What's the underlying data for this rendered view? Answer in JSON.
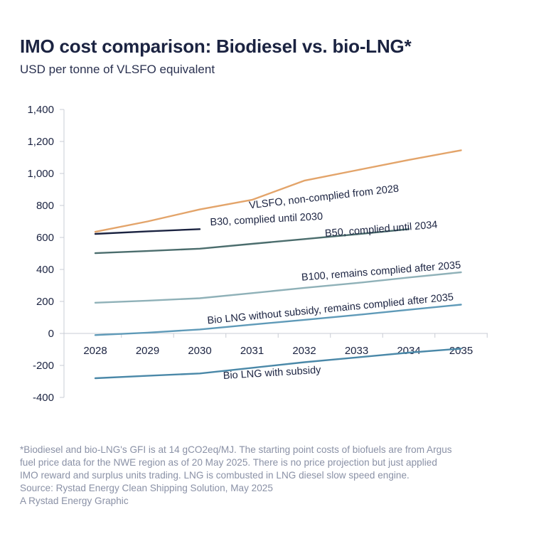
{
  "chart_data": {
    "type": "line",
    "title": "IMO cost comparison: Biodiesel vs. bio-LNG*",
    "subtitle": "USD per tonne of VLSFO equivalent",
    "x": [
      2028,
      2029,
      2030,
      2031,
      2032,
      2033,
      2034,
      2035
    ],
    "x_tick_labels": [
      "2028",
      "2029",
      "2030",
      "2031",
      "2032",
      "2033",
      "2034",
      "2035"
    ],
    "ylim": [
      -400,
      1400
    ],
    "y_ticks": [
      -400,
      -200,
      0,
      200,
      400,
      600,
      800,
      1000,
      1200,
      1400
    ],
    "y_tick_labels": [
      "-400",
      "-200",
      "0",
      "200",
      "400",
      "600",
      "800",
      "1,000",
      "1,200",
      "1,400"
    ],
    "grid": false,
    "series": [
      {
        "name": "VLSFO, non-complied from 2028",
        "color": "#e3a46a",
        "x": [
          2028,
          2029,
          2030,
          2031,
          2032,
          2033,
          2034,
          2035
        ],
        "values": [
          635,
          700,
          775,
          835,
          955,
          1020,
          1085,
          1145
        ]
      },
      {
        "name": "B30, complied until 2030",
        "color": "#1b2341",
        "x": [
          2028,
          2029,
          2030
        ],
        "values": [
          622,
          638,
          652
        ]
      },
      {
        "name": "B50, complied until 2034",
        "color": "#4b6d6d",
        "x": [
          2028,
          2029,
          2030,
          2031,
          2032,
          2033,
          2034
        ],
        "values": [
          502,
          515,
          530,
          560,
          590,
          620,
          652
        ]
      },
      {
        "name": "B100, remains complied after 2035",
        "color": "#8fb1b8",
        "x": [
          2028,
          2029,
          2030,
          2031,
          2032,
          2033,
          2034,
          2035
        ],
        "values": [
          192,
          205,
          220,
          252,
          285,
          315,
          350,
          382
        ]
      },
      {
        "name": "Bio LNG without subsidy, remains complied after 2035",
        "color": "#5f9ab8",
        "x": [
          2028,
          2029,
          2030,
          2031,
          2032,
          2033,
          2034,
          2035
        ],
        "values": [
          -10,
          5,
          25,
          55,
          85,
          115,
          148,
          180
        ]
      },
      {
        "name": "Bio LNG with subsidy",
        "color": "#4a88a8",
        "x": [
          2028,
          2029,
          2030,
          2031,
          2032,
          2033,
          2034,
          2035
        ],
        "values": [
          -280,
          -265,
          -250,
          -215,
          -180,
          -150,
          -120,
          -95
        ]
      }
    ]
  },
  "footnote": {
    "lines": [
      "*Biodiesel and bio-LNG's GFI is at 14 gCO2eq/MJ. The starting point costs of biofuels are from Argus",
      "fuel price data for the NWE region as of 20 May 2025. There is no price projection but just applied",
      "IMO reward and surplus units trading. LNG is combusted in LNG diesel slow speed engine.",
      "Source: Rystad Energy Clean Shipping Solution, May 2025",
      "A Rystad Energy Graphic"
    ]
  }
}
